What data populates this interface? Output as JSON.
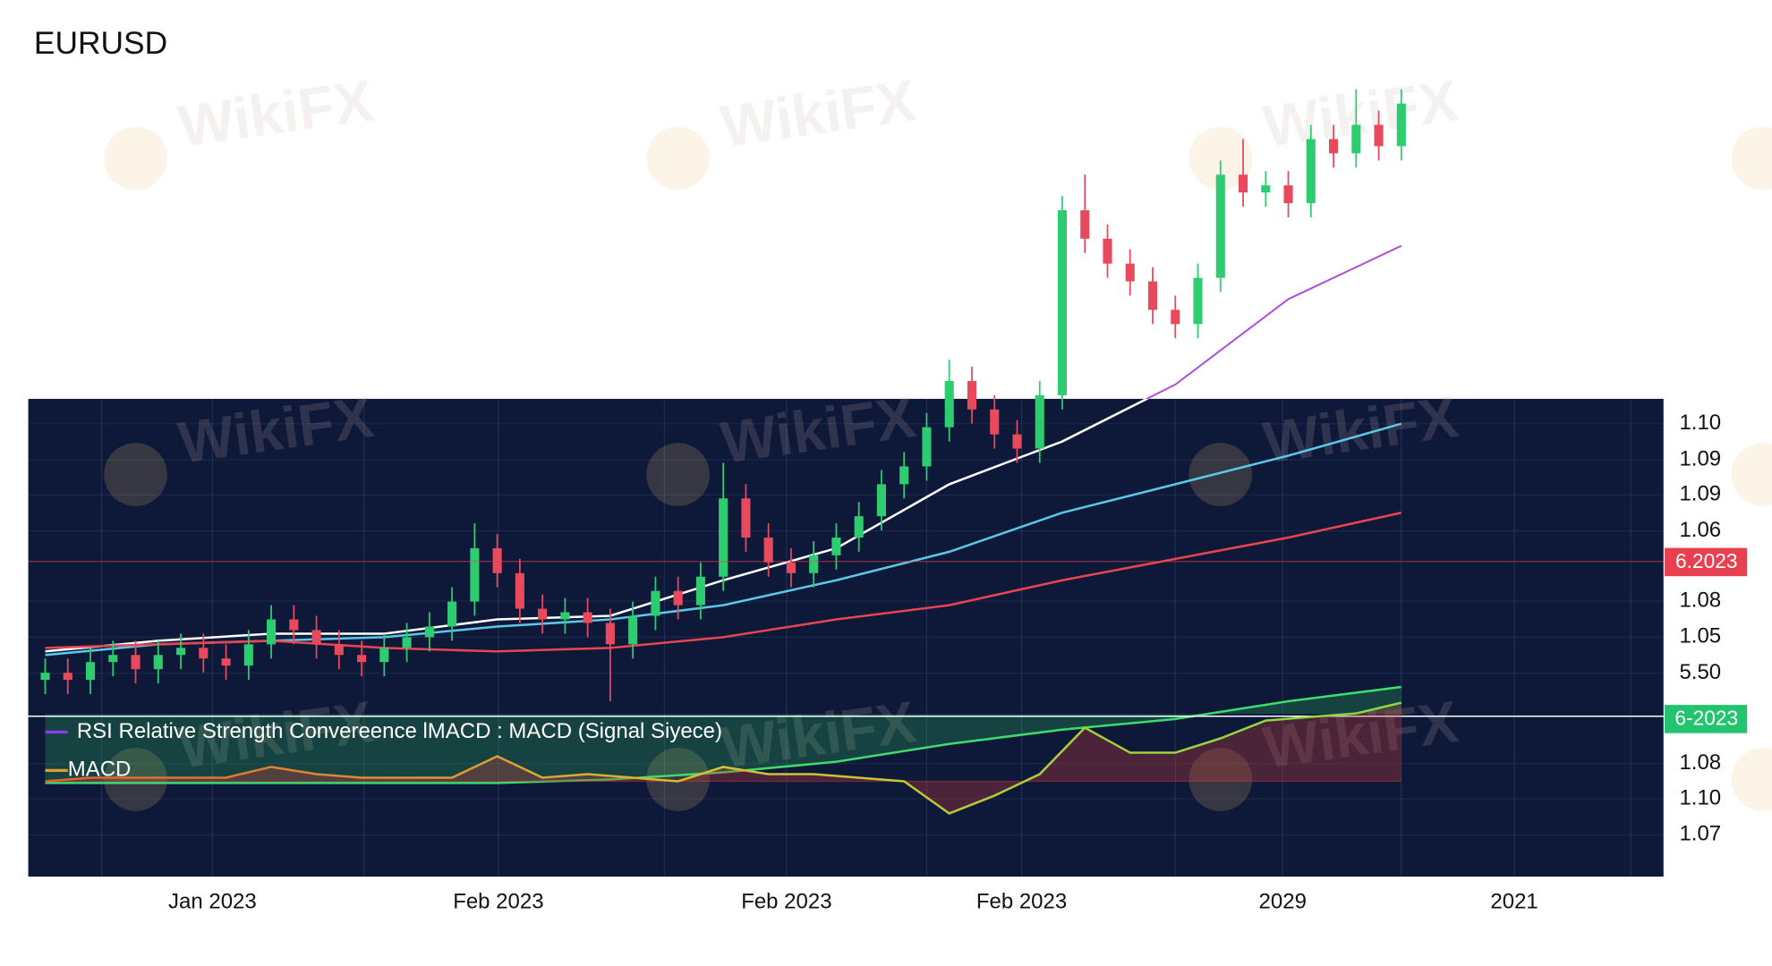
{
  "chart_data": {
    "type": "candlestick",
    "title": "EURUSD",
    "watermark": "WikiFX",
    "ylim": [
      0.97,
      1.2
    ],
    "y_axis_labels": [
      "1.10",
      "1.09",
      "1.09",
      "1.06",
      "1.08",
      "1.05",
      "5.50",
      "1.08",
      "1.10",
      "1.07"
    ],
    "price_badge": "6.2023",
    "macd_badge": "6-2023",
    "x_axis_labels": [
      "Jan 2023",
      "Feb 2023",
      "Feb 2023",
      "Feb 2023",
      "2029",
      "2021"
    ],
    "up_color": "#2ecc71",
    "down_color": "#e8495c",
    "open": [
      1.028,
      1.03,
      1.028,
      1.033,
      1.035,
      1.031,
      1.035,
      1.037,
      1.034,
      1.032,
      1.038,
      1.045,
      1.042,
      1.038,
      1.035,
      1.033,
      1.037,
      1.04,
      1.043,
      1.05,
      1.065,
      1.058,
      1.048,
      1.045,
      1.047,
      1.044,
      1.038,
      1.046,
      1.053,
      1.049,
      1.057,
      1.079,
      1.068,
      1.061,
      1.058,
      1.063,
      1.068,
      1.074,
      1.083,
      1.088,
      1.099,
      1.112,
      1.104,
      1.097,
      1.093,
      1.108,
      1.16,
      1.152,
      1.145,
      1.14,
      1.132,
      1.128,
      1.141,
      1.17,
      1.165,
      1.167,
      1.162,
      1.18,
      1.176,
      1.184,
      1.178
    ],
    "high": [
      1.034,
      1.034,
      1.037,
      1.039,
      1.039,
      1.039,
      1.041,
      1.041,
      1.038,
      1.042,
      1.049,
      1.049,
      1.046,
      1.042,
      1.039,
      1.041,
      1.044,
      1.047,
      1.054,
      1.072,
      1.069,
      1.062,
      1.052,
      1.051,
      1.051,
      1.048,
      1.05,
      1.057,
      1.057,
      1.061,
      1.089,
      1.083,
      1.072,
      1.065,
      1.067,
      1.072,
      1.078,
      1.087,
      1.092,
      1.103,
      1.118,
      1.116,
      1.108,
      1.101,
      1.112,
      1.164,
      1.17,
      1.156,
      1.149,
      1.144,
      1.136,
      1.145,
      1.174,
      1.18,
      1.171,
      1.171,
      1.184,
      1.184,
      1.194,
      1.188,
      1.194
    ],
    "low": [
      1.024,
      1.024,
      1.024,
      1.029,
      1.027,
      1.027,
      1.031,
      1.03,
      1.028,
      1.028,
      1.034,
      1.038,
      1.034,
      1.031,
      1.029,
      1.029,
      1.033,
      1.036,
      1.039,
      1.046,
      1.054,
      1.044,
      1.041,
      1.041,
      1.04,
      1.022,
      1.034,
      1.042,
      1.045,
      1.045,
      1.053,
      1.064,
      1.057,
      1.054,
      1.054,
      1.059,
      1.064,
      1.07,
      1.079,
      1.084,
      1.095,
      1.1,
      1.093,
      1.089,
      1.089,
      1.104,
      1.148,
      1.141,
      1.136,
      1.128,
      1.124,
      1.124,
      1.137,
      1.161,
      1.161,
      1.158,
      1.158,
      1.172,
      1.172,
      1.174,
      1.174
    ],
    "close": [
      1.03,
      1.028,
      1.033,
      1.035,
      1.031,
      1.035,
      1.037,
      1.034,
      1.032,
      1.038,
      1.045,
      1.042,
      1.038,
      1.035,
      1.033,
      1.037,
      1.04,
      1.043,
      1.05,
      1.065,
      1.058,
      1.048,
      1.045,
      1.047,
      1.044,
      1.038,
      1.046,
      1.053,
      1.049,
      1.057,
      1.079,
      1.068,
      1.061,
      1.058,
      1.063,
      1.068,
      1.074,
      1.083,
      1.088,
      1.099,
      1.112,
      1.104,
      1.097,
      1.093,
      1.108,
      1.16,
      1.152,
      1.145,
      1.14,
      1.132,
      1.128,
      1.141,
      1.17,
      1.165,
      1.167,
      1.162,
      1.18,
      1.176,
      1.184,
      1.178,
      1.19
    ],
    "moving_averages": [
      {
        "color": "#ffffff",
        "above_color": "#b04fd8",
        "values": [
          1.036,
          1.039,
          1.041,
          1.041,
          1.045,
          1.046,
          1.056,
          1.065,
          1.083,
          1.095,
          1.111,
          1.135,
          1.15
        ]
      },
      {
        "color": "#5bc8e8",
        "values": [
          1.035,
          1.038,
          1.039,
          1.04,
          1.043,
          1.045,
          1.049,
          1.056,
          1.064,
          1.075,
          1.083,
          1.091,
          1.1
        ]
      },
      {
        "color": "#e8454f",
        "values": [
          1.037,
          1.038,
          1.039,
          1.037,
          1.036,
          1.037,
          1.04,
          1.045,
          1.049,
          1.056,
          1.062,
          1.068,
          1.075
        ]
      },
      {
        "color": "#3ddc6a",
        "fill": true,
        "values": [
          0.999,
          0.999,
          0.999,
          0.999,
          0.999,
          1.0,
          1.002,
          1.005,
          1.01,
          1.014,
          1.017,
          1.022,
          1.026
        ]
      }
    ],
    "legend": [
      {
        "name": "RSI Relative Strength Convereence lMACD : MACD (Signal Siyece)",
        "color": "#8a3cf0"
      },
      {
        "name": "MACD",
        "color": "#e0a030"
      }
    ],
    "macd_ylim": [
      -0.026,
      0.032
    ],
    "macd": [
      0.0,
      0.001,
      0.001,
      0.001,
      0.001,
      0.004,
      0.002,
      0.001,
      0.001,
      0.001,
      0.007,
      0.001,
      0.002,
      0.001,
      0.0,
      0.004,
      0.002,
      0.002,
      0.001,
      0.0,
      -0.009,
      -0.004,
      0.002,
      0.015,
      0.008,
      0.008,
      0.012,
      0.017,
      0.018,
      0.019,
      0.022
    ]
  }
}
